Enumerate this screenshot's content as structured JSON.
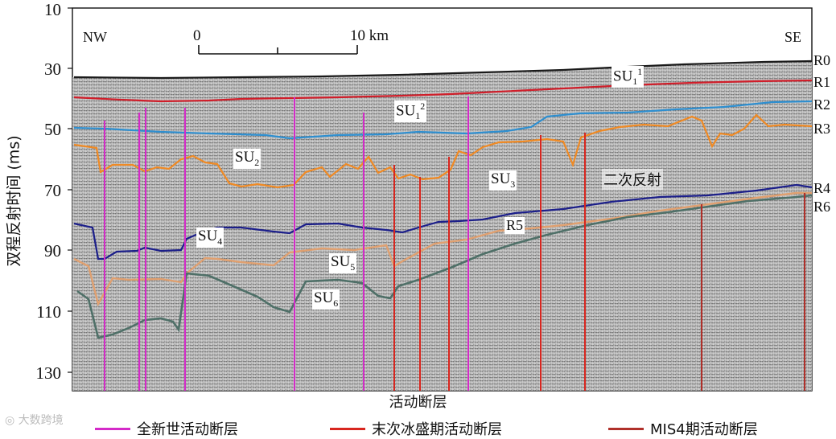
{
  "figure": {
    "y_axis_label": "双程反射时间 (ms)",
    "y_ticks": [
      "10",
      "30",
      "50",
      "70",
      "90",
      "110",
      "130"
    ],
    "direction_left": "NW",
    "direction_right": "SE",
    "scale_start": "0",
    "scale_end": "10 km",
    "horizon_labels": [
      "R0",
      "R1",
      "R2",
      "R3",
      "R4",
      "R5",
      "R6"
    ],
    "units": [
      {
        "base": "SU",
        "sub": "1",
        "sup": "1"
      },
      {
        "base": "SU",
        "sub": "1",
        "sup": "2"
      },
      {
        "base": "SU",
        "sub": "2",
        "sup": ""
      },
      {
        "base": "SU",
        "sub": "3",
        "sup": ""
      },
      {
        "base": "SU",
        "sub": "4",
        "sup": ""
      },
      {
        "base": "SU",
        "sub": "5",
        "sup": ""
      },
      {
        "base": "SU",
        "sub": "6",
        "sup": ""
      }
    ],
    "multiple_label": "二次反射",
    "caption": "活动断层",
    "colors": {
      "r0": "#1a1a1a",
      "r1": "#d01e2a",
      "r2": "#2e8fd0",
      "r3": "#f08a24",
      "r4": "#1c1f8a",
      "r5": "#e0a070",
      "r6": "#4f7068",
      "holocene_fault": "#d42ac8",
      "lgm_fault": "#d8261f",
      "mis4_fault": "#b0302a"
    }
  },
  "legend": [
    {
      "label": "全新世活动断层",
      "color": "#d42ac8"
    },
    {
      "label": "末次冰盛期活动断层",
      "color": "#d8261f"
    },
    {
      "label": "MIS4期活动断层",
      "color": "#b0302a"
    }
  ],
  "watermark": "大数跨境"
}
